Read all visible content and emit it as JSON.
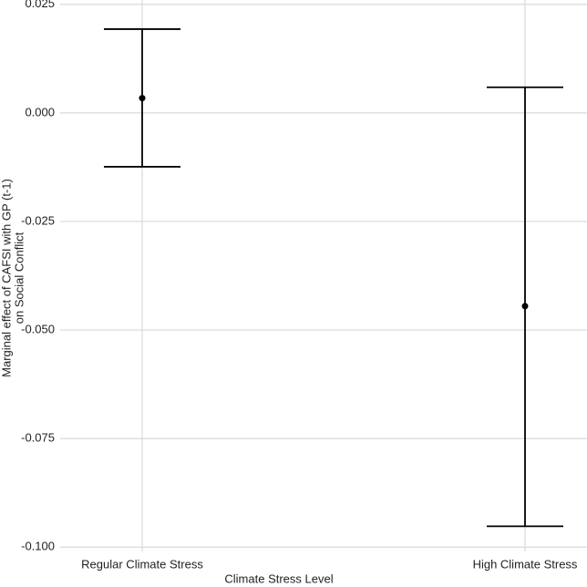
{
  "chart_data": {
    "type": "errorbar",
    "x_label": "Climate Stress Level",
    "y_label": [
      "Marginal effect of CAFSI with GP (t-1)",
      "on Social Conflict"
    ],
    "categories": [
      "Regular Climate Stress",
      "High Climate Stress"
    ],
    "values": [
      0.0034,
      -0.0445
    ],
    "lower": [
      -0.0124,
      -0.0952
    ],
    "upper": [
      0.0193,
      0.0059
    ],
    "color": "#000000",
    "ylim": [
      -0.101,
      0.026
    ],
    "yticks": [
      0.025,
      {
        "value": 0,
        "label": "0.000"
      },
      -0.025,
      {
        "value": -0.05,
        "label": "-0.050"
      },
      -0.075,
      {
        "value": -0.1,
        "label": "-0.100"
      }
    ],
    "grid": true
  }
}
